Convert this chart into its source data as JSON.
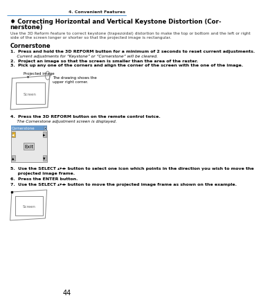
{
  "page_num": "44",
  "section_header": "4. Convenient Features",
  "title_line1": "✹ Correcting Horizontal and Vertical Keystone Distortion (Cor-",
  "title_line2": "nerstone)",
  "intro_line1": "Use the 3D Reform feature to correct keystone (trapezoidal) distortion to make the top or bottom and the left or right",
  "intro_line2": "side of the screen longer or shorter so that the projected image is rectangular.",
  "section_label": "Cornerstone",
  "step1_bold": "1.  Press and hold the 3D REFORM button for a minimum of 2 seconds to reset current adjustments.",
  "step1_note": "     Current adjustments for “Keystone” or “Cornerstone” will be cleared.",
  "step2_bold": "2.  Project an image so that the screen is smaller than the area of the raster.",
  "step3_bold": "3.  Pick up any one of the corners and align the corner of the screen with the one of the image.",
  "proj_label": "Projected image",
  "draw_note1": "The drawing shows the",
  "draw_note2": "upper right corner.",
  "screen_label": "Screen",
  "step4_bold": "4.  Press the 3D REFORM button on the remote control twice.",
  "step4_note": "     The Cornerstone adjustment screen is displayed.",
  "dlg_title": "Cornerstone",
  "dlg_exit": "Exit",
  "step5_bold1": "5.  Use the SELECT ▴▾◂▸ button to select one icon which points in the direction you wish to move the",
  "step5_bold2": "     projected image frame.",
  "step6_bold": "6.  Press the ENTER button.",
  "step7_bold": "7.  Use the SELECT ▴▾◂▸ button to move the projected image frame as shown on the example.",
  "screen_label2": "Screen",
  "bg_color": "#ffffff",
  "header_line_color": "#5b9bd5",
  "title_color": "#000000",
  "body_color": "#333333",
  "dlg_title_bg": "#6699cc",
  "dlg_body_bg": "#e8e8e8",
  "btn_yellow": "#ddaa22",
  "btn_gray": "#bbbbbb"
}
